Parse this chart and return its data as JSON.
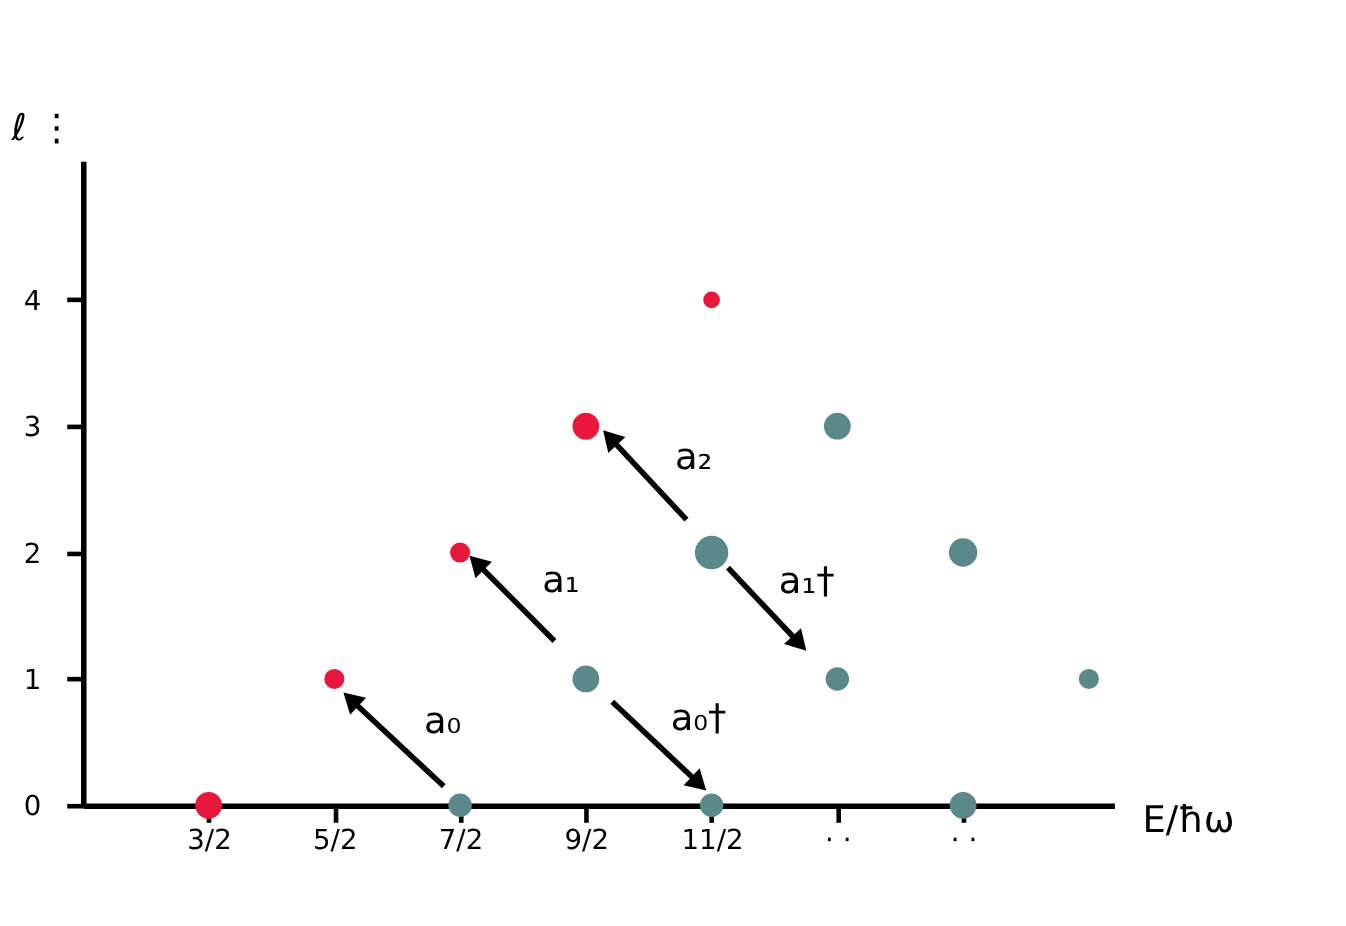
{
  "chart_data": {
    "type": "bubble",
    "xlabel": "E/ħω",
    "ylabel": "ℓ ⋮",
    "xlim": [
      0.5,
      8.7
    ],
    "ylim": [
      0,
      5.1
    ],
    "xticks": [
      {
        "value": 1.5,
        "label": "3/2"
      },
      {
        "value": 2.5,
        "label": "5/2"
      },
      {
        "value": 3.5,
        "label": "7/2"
      },
      {
        "value": 4.5,
        "label": "9/2"
      },
      {
        "value": 5.5,
        "label": "11/2"
      },
      {
        "value": 6.5,
        "label": "· ·"
      },
      {
        "value": 7.5,
        "label": "· ·"
      }
    ],
    "yticks": [
      0,
      1,
      2,
      3,
      4
    ],
    "grid": false,
    "series": [
      {
        "color": "#e8173c",
        "x": [
          1.5,
          2.5,
          3.5,
          4.5,
          5.5
        ],
        "values": [
          0,
          1,
          2,
          3,
          4
        ],
        "sizes": [
          0.64,
          0.36,
          0.36,
          0.64,
          0.25
        ]
      },
      {
        "color": "#5b888a",
        "x": [
          3.5,
          4.5,
          5.5,
          5.5,
          6.5,
          6.5,
          7.5,
          7.5,
          8.5
        ],
        "values": [
          0,
          1,
          0,
          2,
          1,
          3,
          0,
          2,
          1
        ],
        "sizes": [
          0.49,
          0.64,
          0.49,
          1,
          0.49,
          0.64,
          0.64,
          0.72,
          0.36
        ]
      },
      {
        "type": "line",
        "color": "#000000",
        "x": [
          3.37,
          2.65
        ],
        "values": [
          0.15,
          0.82
        ]
      },
      {
        "type": "line",
        "color": "#000000",
        "x": [
          4.25,
          3.65
        ],
        "values": [
          1.3,
          1.9
        ]
      },
      {
        "type": "line",
        "color": "#000000",
        "x": [
          5.3,
          4.71
        ],
        "values": [
          2.26,
          2.89
        ]
      },
      {
        "type": "line",
        "color": "#000000",
        "x": [
          5.63,
          6.18
        ],
        "values": [
          1.88,
          1.3
        ]
      },
      {
        "type": "line",
        "color": "#000000",
        "x": [
          4.71,
          5.38
        ],
        "values": [
          0.82,
          0.19
        ]
      }
    ],
    "annotations": [
      {
        "text": "a₀",
        "x": 3.01,
        "y": 0.485
      },
      {
        "text": "a₁",
        "x": 3.95,
        "y": 1.6
      },
      {
        "text": "a₂",
        "x": 5.005,
        "y": 2.575
      },
      {
        "text": "a₁†",
        "x": 5.905,
        "y": 1.59
      },
      {
        "text": "a₀†",
        "x": 5.045,
        "y": 0.505
      }
    ]
  }
}
